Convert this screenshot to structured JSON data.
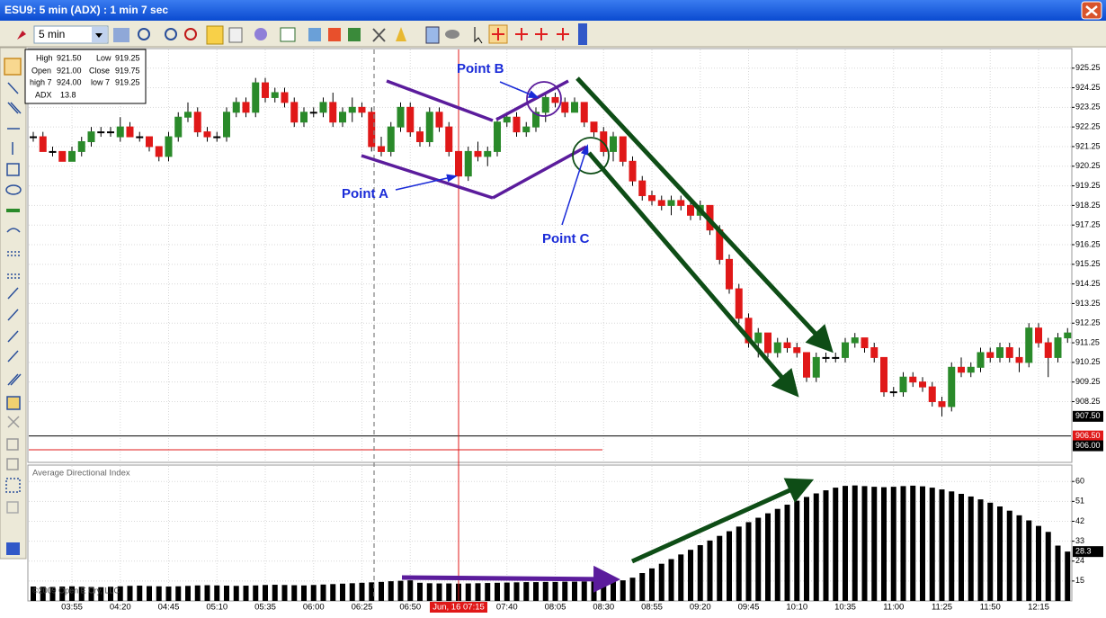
{
  "window": {
    "title": "ESU9: 5 min (ADX) : 1 min 7 sec",
    "timeframe": "5 min"
  },
  "info_box": [
    [
      {
        "label": "High",
        "value": "921.50"
      },
      {
        "label": "Low",
        "value": "919.25"
      }
    ],
    [
      {
        "label": "Open",
        "value": "921.00"
      },
      {
        "label": "Close",
        "value": "919.75"
      }
    ],
    [
      {
        "label": "high 7",
        "value": "924.00"
      },
      {
        "label": "low 7",
        "value": "919.25"
      }
    ],
    [
      {
        "label": "ADX",
        "value": "13.8"
      }
    ]
  ],
  "chart_data": [
    {
      "type": "candlestick",
      "categories": [
        null,
        null,
        null,
        null,
        "03:55",
        null,
        null,
        null,
        null,
        "04:20",
        null,
        null,
        null,
        null,
        "04:45",
        null,
        null,
        null,
        null,
        "05:10",
        null,
        null,
        null,
        null,
        "05:35",
        null,
        null,
        null,
        null,
        "06:00",
        null,
        null,
        null,
        null,
        "06:25",
        null,
        null,
        null,
        null,
        "06:50",
        null,
        null,
        null,
        null,
        "Jun, 16 07:15",
        null,
        null,
        null,
        null,
        "07:40",
        null,
        null,
        null,
        null,
        "08:05",
        null,
        null,
        null,
        null,
        "08:30",
        null,
        null,
        null,
        null,
        "08:55",
        null,
        null,
        null,
        null,
        "09:20",
        null,
        null,
        null,
        null,
        "09:45",
        null,
        null,
        null,
        null,
        "10:10",
        null,
        null,
        null,
        null,
        "10:35",
        null,
        null,
        null,
        null,
        "11:00",
        null,
        null,
        null,
        null,
        "11:25",
        null,
        null,
        null,
        null,
        "11:50",
        null,
        null,
        null,
        null,
        "12:15",
        null,
        null,
        null
      ],
      "ohlc": [
        [
          921.75,
          922.0,
          921.5,
          921.75
        ],
        [
          921.75,
          922.0,
          921.0,
          921.0
        ],
        [
          921.0,
          921.25,
          920.75,
          921.0
        ],
        [
          921.0,
          921.0,
          920.5,
          920.5
        ],
        [
          920.5,
          921.25,
          920.5,
          921.0
        ],
        [
          921.0,
          921.75,
          920.75,
          921.5
        ],
        [
          921.5,
          922.25,
          921.25,
          922.0
        ],
        [
          922.0,
          922.25,
          921.75,
          922.0
        ],
        [
          922.0,
          922.25,
          921.75,
          922.0
        ],
        [
          921.75,
          922.75,
          921.5,
          922.25
        ],
        [
          922.25,
          922.5,
          921.75,
          921.75
        ],
        [
          921.75,
          922.0,
          921.5,
          921.75
        ],
        [
          921.75,
          921.75,
          921.0,
          921.25
        ],
        [
          921.25,
          921.25,
          920.5,
          920.75
        ],
        [
          920.75,
          922.0,
          920.5,
          921.75
        ],
        [
          921.75,
          923.0,
          921.5,
          922.75
        ],
        [
          922.75,
          923.5,
          922.5,
          923.0
        ],
        [
          923.0,
          923.25,
          921.75,
          922.0
        ],
        [
          922.0,
          922.25,
          921.5,
          921.75
        ],
        [
          921.75,
          922.0,
          921.5,
          921.75
        ],
        [
          921.75,
          923.25,
          921.5,
          923.0
        ],
        [
          923.0,
          923.75,
          922.75,
          923.5
        ],
        [
          923.5,
          923.75,
          922.75,
          923.0
        ],
        [
          923.0,
          924.75,
          922.75,
          924.5
        ],
        [
          924.5,
          924.75,
          923.5,
          923.75
        ],
        [
          923.75,
          924.25,
          923.5,
          924.0
        ],
        [
          924.0,
          924.25,
          923.25,
          923.5
        ],
        [
          923.5,
          923.75,
          922.25,
          922.5
        ],
        [
          922.5,
          923.25,
          922.25,
          923.0
        ],
        [
          923.0,
          923.25,
          922.75,
          923.0
        ],
        [
          923.0,
          923.75,
          922.75,
          923.5
        ],
        [
          923.5,
          924.0,
          922.25,
          922.5
        ],
        [
          922.5,
          923.25,
          922.25,
          923.0
        ],
        [
          923.0,
          923.75,
          922.5,
          923.25
        ],
        [
          923.25,
          923.5,
          922.75,
          923.0
        ],
        [
          923.0,
          923.25,
          921.0,
          921.25
        ],
        [
          921.25,
          921.75,
          920.75,
          921.0
        ],
        [
          921.0,
          922.5,
          920.75,
          922.25
        ],
        [
          922.25,
          923.5,
          922.0,
          923.25
        ],
        [
          923.25,
          923.5,
          921.75,
          922.0
        ],
        [
          922.0,
          922.25,
          921.25,
          921.5
        ],
        [
          921.5,
          923.25,
          921.25,
          923.0
        ],
        [
          923.0,
          923.25,
          922.0,
          922.25
        ],
        [
          922.25,
          922.5,
          920.75,
          921.0
        ],
        [
          921.0,
          921.5,
          919.25,
          919.75
        ],
        [
          919.75,
          921.25,
          919.5,
          921.0
        ],
        [
          921.0,
          921.5,
          920.5,
          920.75
        ],
        [
          920.75,
          921.25,
          920.25,
          921.0
        ],
        [
          921.0,
          922.75,
          920.75,
          922.5
        ],
        [
          922.5,
          923.0,
          922.25,
          922.75
        ],
        [
          922.75,
          923.0,
          921.75,
          922.0
        ],
        [
          922.0,
          922.5,
          921.75,
          922.25
        ],
        [
          922.25,
          923.25,
          922.0,
          923.0
        ],
        [
          923.0,
          924.0,
          922.5,
          923.75
        ],
        [
          923.75,
          924.0,
          923.25,
          923.5
        ],
        [
          923.5,
          923.75,
          922.75,
          923.0
        ],
        [
          923.0,
          923.75,
          923.0,
          923.5
        ],
        [
          923.5,
          923.5,
          922.25,
          922.5
        ],
        [
          922.5,
          922.5,
          921.75,
          922.0
        ],
        [
          922.0,
          922.25,
          920.75,
          921.0
        ],
        [
          921.0,
          922.0,
          920.5,
          921.75
        ],
        [
          921.75,
          921.75,
          920.25,
          920.5
        ],
        [
          920.5,
          920.75,
          919.25,
          919.5
        ],
        [
          919.5,
          919.75,
          918.5,
          918.75
        ],
        [
          918.75,
          919.0,
          918.25,
          918.5
        ],
        [
          918.5,
          918.75,
          918.0,
          918.25
        ],
        [
          918.25,
          918.75,
          917.75,
          918.5
        ],
        [
          918.5,
          918.75,
          918.0,
          918.25
        ],
        [
          918.25,
          918.5,
          917.5,
          917.75
        ],
        [
          917.75,
          918.5,
          917.5,
          918.25
        ],
        [
          918.25,
          918.25,
          916.75,
          917.0
        ],
        [
          917.0,
          917.25,
          915.25,
          915.5
        ],
        [
          915.5,
          915.75,
          913.75,
          914.0
        ],
        [
          914.0,
          914.25,
          912.25,
          912.5
        ],
        [
          912.5,
          912.75,
          911.0,
          911.25
        ],
        [
          911.25,
          912.0,
          910.5,
          911.75
        ],
        [
          911.75,
          911.75,
          910.5,
          910.75
        ],
        [
          910.75,
          911.5,
          910.5,
          911.25
        ],
        [
          911.25,
          911.5,
          910.75,
          911.0
        ],
        [
          911.0,
          911.25,
          910.5,
          910.75
        ],
        [
          910.75,
          910.75,
          909.25,
          909.5
        ],
        [
          909.5,
          910.75,
          909.25,
          910.5
        ],
        [
          910.5,
          910.75,
          910.25,
          910.5
        ],
        [
          910.5,
          910.75,
          910.25,
          910.5
        ],
        [
          910.5,
          911.5,
          910.25,
          911.25
        ],
        [
          911.25,
          911.75,
          911.0,
          911.5
        ],
        [
          911.5,
          911.5,
          910.75,
          911.0
        ],
        [
          911.0,
          911.25,
          910.25,
          910.5
        ],
        [
          910.5,
          910.5,
          908.5,
          908.75
        ],
        [
          908.75,
          909.0,
          908.5,
          908.75
        ],
        [
          908.75,
          909.75,
          908.5,
          909.5
        ],
        [
          909.5,
          909.75,
          909.0,
          909.25
        ],
        [
          909.25,
          909.5,
          908.75,
          909.0
        ],
        [
          909.0,
          909.25,
          908.0,
          908.25
        ],
        [
          908.25,
          908.5,
          907.5,
          908.0
        ],
        [
          908.0,
          910.25,
          907.75,
          910.0
        ],
        [
          910.0,
          910.5,
          909.5,
          909.75
        ],
        [
          909.75,
          910.25,
          909.5,
          910.0
        ],
        [
          910.0,
          911.0,
          909.75,
          910.75
        ],
        [
          910.75,
          911.0,
          910.25,
          910.5
        ],
        [
          910.5,
          911.25,
          910.25,
          911.0
        ],
        [
          911.0,
          911.25,
          910.25,
          910.5
        ],
        [
          910.5,
          911.0,
          909.75,
          910.25
        ],
        [
          910.25,
          912.25,
          910.0,
          912.0
        ],
        [
          912.0,
          912.25,
          911.0,
          911.25
        ],
        [
          911.25,
          911.5,
          909.5,
          910.5
        ],
        [
          910.5,
          911.75,
          910.25,
          911.5
        ],
        [
          911.5,
          912.0,
          911.25,
          911.75
        ]
      ],
      "up_color": "#2a8a2a",
      "down_color": "#e01818",
      "ylim": [
        905.2,
        926.2
      ],
      "yticks": [
        925.25,
        924.25,
        923.25,
        922.25,
        921.25,
        920.25,
        919.25,
        918.25,
        917.25,
        916.25,
        915.25,
        914.25,
        913.25,
        912.25,
        911.25,
        910.25,
        909.25,
        908.25
      ],
      "price_markers": [
        {
          "value": 907.5,
          "label": "907.50",
          "color": "#000000"
        },
        {
          "value": 906.5,
          "label": "906.50",
          "color": "#e01818"
        },
        {
          "value": 906.0,
          "label": "906.00",
          "color": "#000000"
        }
      ],
      "annotations": [
        "Point A",
        "Point B",
        "Point C"
      ],
      "grid": true
    },
    {
      "type": "bar",
      "title": "Average Directional Index",
      "values": [
        12.5,
        12.4,
        12.3,
        12.5,
        12.6,
        12.4,
        12.3,
        12.2,
        12.4,
        12.6,
        12.8,
        12.9,
        12.7,
        12.6,
        12.5,
        12.6,
        12.8,
        13.0,
        13.1,
        13.0,
        12.9,
        12.8,
        12.9,
        13.0,
        13.2,
        13.3,
        13.2,
        13.1,
        13.0,
        13.2,
        13.4,
        13.6,
        13.8,
        14.0,
        14.2,
        14.4,
        14.6,
        14.9,
        15.1,
        15.3,
        14.2,
        14.0,
        13.9,
        13.9,
        13.8,
        13.9,
        14.0,
        14.1,
        14.2,
        14.3,
        14.4,
        14.5,
        14.5,
        14.6,
        14.6,
        14.7,
        14.7,
        14.8,
        14.8,
        14.9,
        15.0,
        15.3,
        16.5,
        18.6,
        20.7,
        22.8,
        24.9,
        27.0,
        29.1,
        31.2,
        33.3,
        35.4,
        37.5,
        39.6,
        41.6,
        43.6,
        45.6,
        47.6,
        49.5,
        51.3,
        53.0,
        54.6,
        56.0,
        57.2,
        58.0,
        58.2,
        57.9,
        57.6,
        57.4,
        57.6,
        57.9,
        58.1,
        57.8,
        57.2,
        56.4,
        55.5,
        54.4,
        53.2,
        51.9,
        50.4,
        48.7,
        46.8,
        44.7,
        42.4,
        39.9,
        37.2,
        31.0,
        28.3
      ],
      "color": "#000000",
      "ylim": [
        6,
        67
      ],
      "yticks": [
        60,
        51,
        42,
        33,
        24,
        15
      ],
      "grid": true
    }
  ],
  "copyright": "©2009 Open E Cry, LLC"
}
